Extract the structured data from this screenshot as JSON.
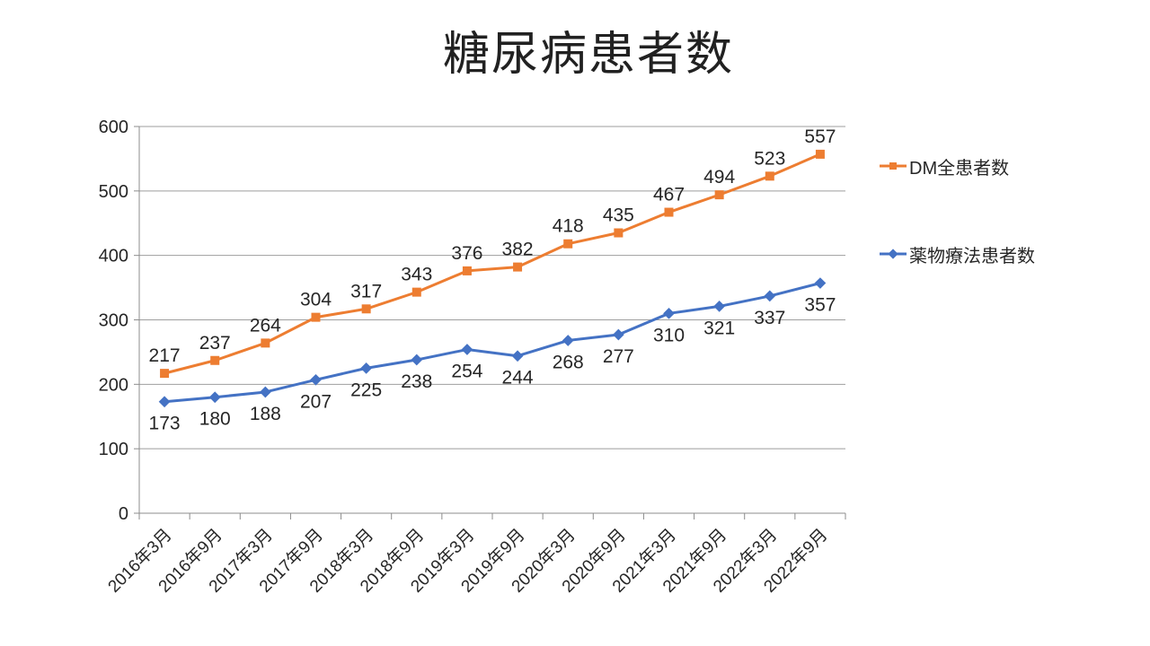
{
  "chart_data": {
    "type": "line",
    "title": "糖尿病患者数",
    "categories": [
      "2016年3月",
      "2016年9月",
      "2017年3月",
      "2017年9月",
      "2018年3月",
      "2018年9月",
      "2019年3月",
      "2019年9月",
      "2020年3月",
      "2020年9月",
      "2021年3月",
      "2021年9月",
      "2022年3月",
      "2022年9月"
    ],
    "series": [
      {
        "name": "DM全患者数",
        "color": "#ED7D31",
        "marker": "square",
        "label_position": "above",
        "values": [
          217,
          237,
          264,
          304,
          317,
          343,
          376,
          382,
          418,
          435,
          467,
          494,
          523,
          557
        ]
      },
      {
        "name": "薬物療法患者数",
        "color": "#4472C4",
        "marker": "diamond",
        "label_position": "below",
        "values": [
          173,
          180,
          188,
          207,
          225,
          238,
          254,
          244,
          268,
          277,
          310,
          321,
          337,
          357
        ]
      }
    ],
    "ylim": [
      0,
      600
    ],
    "yticks": [
      0,
      100,
      200,
      300,
      400,
      500,
      600
    ],
    "grid": true,
    "legend_position": "right",
    "colors": {
      "gridline": "#9E9E9E",
      "axis": "#8C8C8C",
      "tick_label": "#262626",
      "data_label": "#262626",
      "title": "#212121",
      "background": "#FFFFFF"
    }
  }
}
